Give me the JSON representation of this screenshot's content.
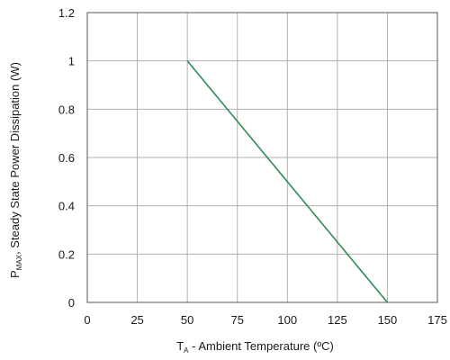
{
  "chart_data": {
    "type": "line",
    "xlabel_main": "T",
    "xlabel_sub": "A",
    "xlabel_rest": " - Ambient Temperature (ºC)",
    "ylabel_main": "P",
    "ylabel_sub": "MAX",
    "ylabel_rest": ", Steady State Power Dissipation (W)",
    "xlim": [
      0,
      175
    ],
    "ylim": [
      0,
      1.2
    ],
    "x_ticks": [
      0,
      25,
      50,
      75,
      100,
      125,
      150,
      175
    ],
    "y_ticks": [
      0,
      0.2,
      0.4,
      0.6,
      0.8,
      1,
      1.2
    ],
    "x_tick_labels": [
      "0",
      "25",
      "50",
      "75",
      "100",
      "125",
      "150",
      "175"
    ],
    "y_tick_labels": [
      "0",
      "0.2",
      "0.4",
      "0.6",
      "0.8",
      "1",
      "1.2"
    ],
    "grid": true,
    "series": [
      {
        "x": [
          50,
          150
        ],
        "y": [
          1,
          0
        ],
        "color": "#2e8b57"
      }
    ],
    "gridColor": "#b0b0b0",
    "frameColor": "#555555"
  }
}
